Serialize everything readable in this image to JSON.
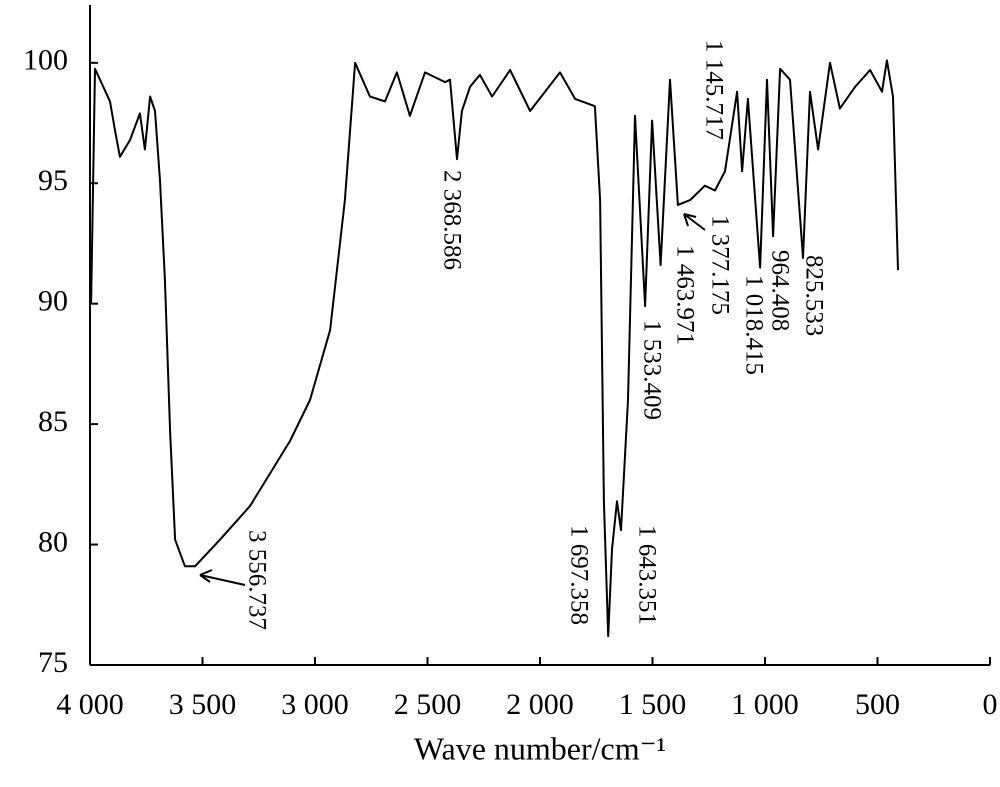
{
  "chart_data": {
    "type": "line",
    "x_label": "Wave number/cm⁻¹",
    "xlim": [
      4000,
      0
    ],
    "ylim": [
      75,
      102.4
    ],
    "xticks": [
      {
        "value": 4000,
        "label": "4 000"
      },
      {
        "value": 3500,
        "label": "3 500"
      },
      {
        "value": 3000,
        "label": "3 000"
      },
      {
        "value": 2500,
        "label": "2 500"
      },
      {
        "value": 2000,
        "label": "2 000"
      },
      {
        "value": 1500,
        "label": "1 500"
      },
      {
        "value": 1000,
        "label": "1 000"
      },
      500,
      0
    ],
    "yticks": [
      75,
      80,
      85,
      90,
      95,
      100
    ],
    "series": [
      {
        "color": "#000000",
        "x": [
          3995,
          3978,
          3911,
          3889,
          3867,
          3822,
          3778,
          3756,
          3733,
          3711,
          3689,
          3667,
          3644,
          3622,
          3578,
          3533,
          3422,
          3289,
          3111,
          3022,
          2933,
          2867,
          2822,
          2756,
          2689,
          2636,
          2578,
          2511,
          2422,
          2400,
          2369,
          2347,
          2311,
          2267,
          2213,
          2133,
          2044,
          1911,
          1844,
          1756,
          1733,
          1716,
          1697,
          1680,
          1658,
          1640,
          1609,
          1578,
          1533,
          1502,
          1464,
          1422,
          1387,
          1333,
          1267,
          1222,
          1178,
          1124,
          1102,
          1076,
          1022,
          991,
          964,
          933,
          889,
          831,
          800,
          764,
          711,
          667,
          600,
          533,
          480,
          458,
          431,
          409
        ],
        "values": [
          90,
          99.75,
          98.4,
          97.2,
          96.1,
          96.8,
          97.9,
          96.4,
          98.6,
          98.0,
          95.1,
          91.0,
          84.7,
          80.2,
          79.1,
          79.1,
          80.2,
          81.6,
          84.3,
          86.0,
          88.9,
          94.3,
          100,
          98.6,
          98.4,
          99.6,
          97.8,
          99.6,
          99.2,
          99.3,
          96.0,
          98.0,
          99.0,
          99.5,
          98.6,
          99.7,
          98.0,
          99.6,
          98.5,
          98.2,
          94.3,
          81.8,
          76.2,
          79.8,
          81.8,
          80.6,
          86.0,
          97.8,
          89.9,
          97.6,
          91.6,
          99.3,
          94.1,
          94.3,
          94.9,
          94.7,
          95.5,
          98.8,
          95.5,
          98.5,
          91.5,
          99.3,
          92.8,
          99.75,
          99.3,
          91.9,
          98.8,
          96.4,
          100,
          98.1,
          99.0,
          99.7,
          98.8,
          100.1,
          98.6,
          91.4
        ]
      }
    ],
    "annotations": [
      "3 556.737",
      "2 368.586",
      "1 697.358",
      "1 643.351",
      "1 533.409",
      "1 463.971",
      "1 377.175",
      "1 145.717",
      "1 018.415",
      "964.408",
      "825.533"
    ]
  }
}
